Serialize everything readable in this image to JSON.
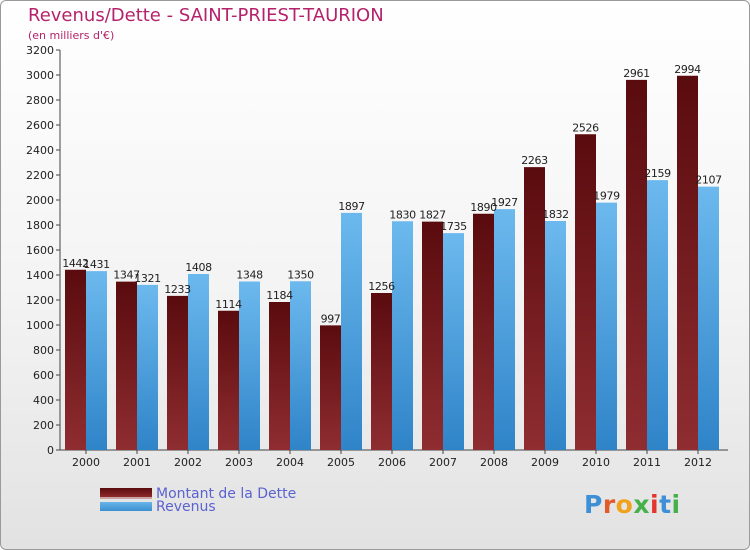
{
  "header": {
    "title": "Revenus/Dette - SAINT-PRIEST-TAURION",
    "subtitle": "(en milliers d'€)"
  },
  "logo": {
    "text": "Proxiti"
  },
  "colors": {
    "dette_top": "#5a0b0e",
    "dette_bottom": "#8f2d31",
    "revenus_top": "#6cb9ee",
    "revenus_bottom": "#2f84c8",
    "title": "#b5226b",
    "legend_text": "#5a63cf"
  },
  "chart_data": {
    "type": "bar",
    "title": "Revenus/Dette - SAINT-PRIEST-TAURION",
    "subtitle": "(en milliers d'€)",
    "xlabel": "",
    "ylabel": "(en milliers d'€)",
    "categories": [
      "2000",
      "2001",
      "2002",
      "2003",
      "2004",
      "2005",
      "2006",
      "2007",
      "2008",
      "2009",
      "2010",
      "2011",
      "2012"
    ],
    "series": [
      {
        "name": "Montant de la Dette",
        "values": [
          1442,
          1347,
          1233,
          1114,
          1184,
          997,
          1256,
          1827,
          1890,
          2263,
          2526,
          2961,
          2994
        ]
      },
      {
        "name": "Revenus",
        "values": [
          1431,
          1321,
          1408,
          1348,
          1350,
          1897,
          1830,
          1735,
          1927,
          1832,
          1979,
          2159,
          2107
        ]
      }
    ],
    "ylim": [
      0,
      3200
    ],
    "yticks": [
      0,
      200,
      400,
      600,
      800,
      1000,
      1200,
      1400,
      1600,
      1800,
      2000,
      2200,
      2400,
      2600,
      2800,
      3000,
      3200
    ],
    "grid": false,
    "legend": "bottom-left"
  }
}
